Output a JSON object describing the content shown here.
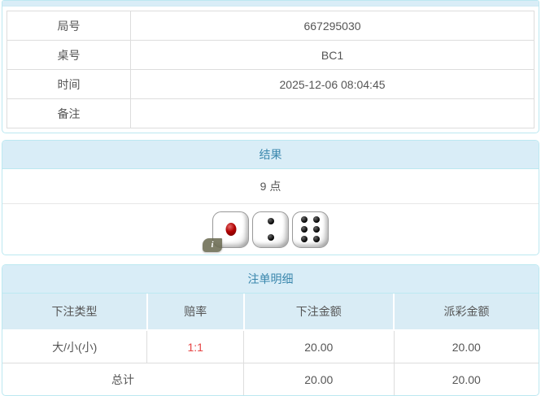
{
  "info_table": {
    "rows": [
      {
        "label": "局号",
        "value": "667295030"
      },
      {
        "label": "桌号",
        "value": "BC1"
      },
      {
        "label": "时间",
        "value": "2025-12-06 08:04:45"
      },
      {
        "label": "备注",
        "value": ""
      }
    ]
  },
  "result_panel": {
    "title": "结果",
    "points_text": "9 点",
    "dice_values": [
      1,
      2,
      6
    ],
    "info_badge_text": "i"
  },
  "bet_panel": {
    "title": "注单明细",
    "columns": [
      "下注类型",
      "赔率",
      "下注金额",
      "派彩金额"
    ],
    "rows": [
      {
        "bet_type": "大/小(小)",
        "odds": "1:1",
        "bet_amount": "20.00",
        "payout_amount": "20.00"
      }
    ],
    "total_row": {
      "label": "总计",
      "bet_amount": "20.00",
      "payout_amount": "20.00"
    }
  },
  "colors": {
    "panel_border": "#bce8f1",
    "heading_bg": "#d9edf7",
    "heading_text": "#3a87ad",
    "table_header_bg": "#d9ecf5",
    "table_border": "#dddddd",
    "odds_red": "#e64444",
    "text": "#555555",
    "die_pip_red": "#b00000",
    "die_pip_black": "#111111",
    "info_badge_bg": "#67674d"
  }
}
